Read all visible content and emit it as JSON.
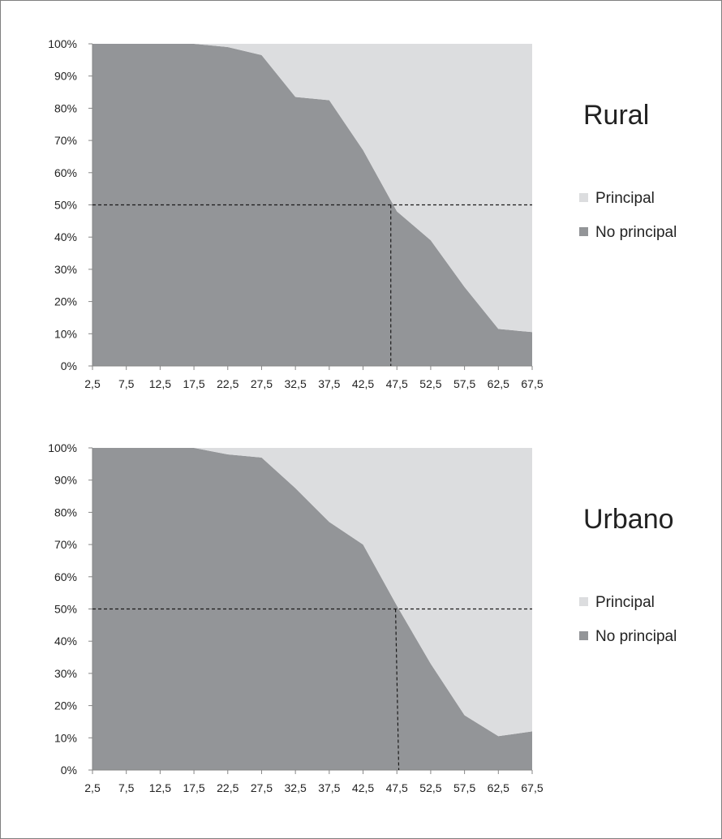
{
  "chart_data": [
    {
      "type": "area",
      "stacked": true,
      "percent": true,
      "title": "Rural",
      "x": [
        "2,5",
        "7,5",
        "12,5",
        "17,5",
        "22,5",
        "27,5",
        "32,5",
        "37,5",
        "42,5",
        "47,5",
        "52,5",
        "57,5",
        "62,5",
        "67,5"
      ],
      "series": [
        {
          "name": "No principal",
          "color": "#939598",
          "values": [
            100,
            100,
            100,
            100,
            99,
            96.5,
            83.5,
            82.5,
            67,
            48,
            39,
            24.5,
            11.5,
            10.5
          ]
        },
        {
          "name": "Principal",
          "color": "#dcdddf",
          "values": [
            0,
            0,
            0,
            0,
            1,
            3.5,
            16.5,
            17.5,
            33,
            52,
            61,
            75.5,
            88.5,
            89.5
          ]
        }
      ],
      "y_ticks": [
        "0%",
        "10%",
        "20%",
        "30%",
        "40%",
        "50%",
        "60%",
        "70%",
        "80%",
        "90%",
        "100%"
      ],
      "ylim": [
        0,
        100
      ],
      "grid": false,
      "legend": "right",
      "reference_lines": {
        "y": 50,
        "x": 46.6
      }
    },
    {
      "type": "area",
      "stacked": true,
      "percent": true,
      "title": "Urbano",
      "x": [
        "2,5",
        "7,5",
        "12,5",
        "17,5",
        "22,5",
        "27,5",
        "32,5",
        "37,5",
        "42,5",
        "47,5",
        "52,5",
        "57,5",
        "62,5",
        "67,5"
      ],
      "series": [
        {
          "name": "No principal",
          "color": "#939598",
          "values": [
            100,
            100,
            100,
            100,
            98,
            97,
            87.5,
            77,
            70,
            51,
            33,
            17,
            10.5,
            12
          ]
        },
        {
          "name": "Principal",
          "color": "#dcdddf",
          "values": [
            0,
            0,
            0,
            0,
            2,
            3,
            12.5,
            23,
            30,
            49,
            67,
            83,
            89.5,
            88
          ]
        }
      ],
      "y_ticks": [
        "0%",
        "10%",
        "20%",
        "30%",
        "40%",
        "50%",
        "60%",
        "70%",
        "80%",
        "90%",
        "100%"
      ],
      "ylim": [
        0,
        100
      ],
      "grid": false,
      "legend": "right",
      "reference_lines": {
        "y": 50,
        "x": 47.3
      }
    }
  ]
}
